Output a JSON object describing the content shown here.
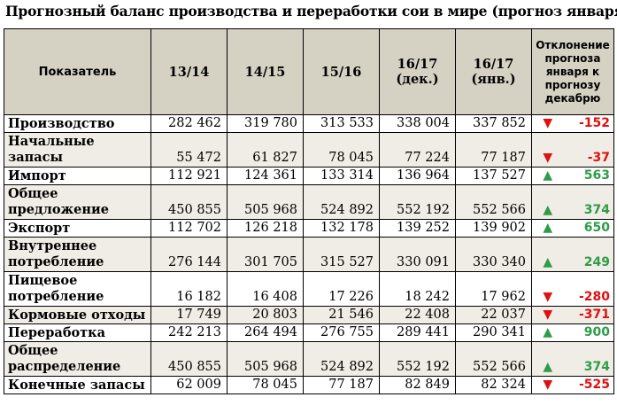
{
  "title": "Прогнозный баланс производства и переработки сои в мире (прогноз января)",
  "table": {
    "headers": {
      "label": "Показатель",
      "c1": "13/14",
      "c2": "14/15",
      "c3": "15/16",
      "c4_line1": "16/17",
      "c4_line2": "(дек.)",
      "c5_line1": "16/17",
      "c5_line2": "(янв.)",
      "deviation": "Отклонение прогноза января к прогнозу декабрю"
    },
    "rows": [
      {
        "label": "Производство",
        "v1": "282 462",
        "v2": "319 780",
        "v3": "313 533",
        "v4": "338 004",
        "v5": "337 852",
        "arrow": "down",
        "arrow_glyph": "▼",
        "dev": "-152"
      },
      {
        "label": "Начальные запасы",
        "v1": "55 472",
        "v2": "61 827",
        "v3": "78 045",
        "v4": "77 224",
        "v5": "77 187",
        "arrow": "down",
        "arrow_glyph": "▼",
        "dev": "-37"
      },
      {
        "label": "Импорт",
        "v1": "112 921",
        "v2": "124 361",
        "v3": "133 314",
        "v4": "136 964",
        "v5": "137 527",
        "arrow": "up",
        "arrow_glyph": "▲",
        "dev": "563"
      },
      {
        "label": "Общее предложение",
        "v1": "450 855",
        "v2": "505 968",
        "v3": "524 892",
        "v4": "552 192",
        "v5": "552 566",
        "arrow": "up",
        "arrow_glyph": "▲",
        "dev": "374"
      },
      {
        "label": "Экспорт",
        "v1": "112 702",
        "v2": "126 218",
        "v3": "132 178",
        "v4": "139 252",
        "v5": "139 902",
        "arrow": "up",
        "arrow_glyph": "▲",
        "dev": "650"
      },
      {
        "label": "Внутреннее потребление",
        "v1": "276 144",
        "v2": "301 705",
        "v3": "315 527",
        "v4": "330 091",
        "v5": "330 340",
        "arrow": "up",
        "arrow_glyph": "▲",
        "dev": "249"
      },
      {
        "label": "Пищевое потребление",
        "v1": "16 182",
        "v2": "16 408",
        "v3": "17 226",
        "v4": "18 242",
        "v5": "17 962",
        "arrow": "down",
        "arrow_glyph": "▼",
        "dev": "-280"
      },
      {
        "label": "Кормовые отходы",
        "v1": "17 749",
        "v2": "20 803",
        "v3": "21 546",
        "v4": "22 408",
        "v5": "22 037",
        "arrow": "down",
        "arrow_glyph": "▼",
        "dev": "-371"
      },
      {
        "label": "Переработка",
        "v1": "242 213",
        "v2": "264 494",
        "v3": "276 755",
        "v4": "289 441",
        "v5": "290 341",
        "arrow": "up",
        "arrow_glyph": "▲",
        "dev": "900"
      },
      {
        "label": "Общее распределение",
        "v1": "450 855",
        "v2": "505 968",
        "v3": "524 892",
        "v4": "552 192",
        "v5": "552 566",
        "arrow": "up",
        "arrow_glyph": "▲",
        "dev": "374"
      },
      {
        "label": "Конечные запасы",
        "v1": "62 009",
        "v2": "78 045",
        "v3": "77 187",
        "v4": "82 849",
        "v5": "82 324",
        "arrow": "down",
        "arrow_glyph": "▼",
        "dev": "-525"
      }
    ]
  }
}
